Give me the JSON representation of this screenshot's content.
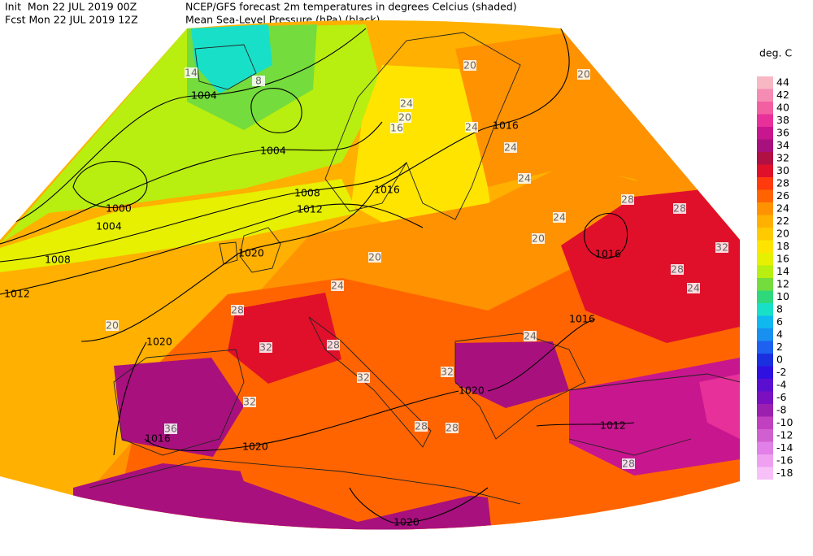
{
  "header": {
    "init": "Init  Mon 22 JUL 2019 00Z",
    "fcst": "Fcst Mon 22 JUL 2019 12Z",
    "title_line1": "NCEP/GFS forecast 2m temperatures in degrees Celcius (shaded)",
    "title_line2": "Mean Sea-Level Pressure (hPa) (black)."
  },
  "legend": {
    "unit": "deg. C",
    "levels": [
      44,
      42,
      40,
      38,
      36,
      34,
      32,
      30,
      28,
      26,
      24,
      22,
      20,
      18,
      16,
      14,
      12,
      10,
      8,
      6,
      4,
      2,
      0,
      -2,
      -4,
      -6,
      -8,
      -10,
      -12,
      -14,
      -16,
      -18
    ],
    "colors": [
      "#f7b8c4",
      "#f58cb4",
      "#f260a2",
      "#e8309a",
      "#c8168e",
      "#a8107e",
      "#b01044",
      "#e0102a",
      "#ff3a0c",
      "#ff6400",
      "#ff9200",
      "#ffb000",
      "#ffca00",
      "#ffe400",
      "#e6f000",
      "#b8ee10",
      "#74dc3c",
      "#30d87c",
      "#18e0c8",
      "#10b8f0",
      "#1890f0",
      "#1e60f0",
      "#1a30e0",
      "#3010e0",
      "#5a0ed0",
      "#7a10c0",
      "#9c20b0",
      "#c040c0",
      "#d060d0",
      "#e080e8",
      "#f0a0f0",
      "#f8c0f8"
    ]
  },
  "isobar_labels": [
    1004,
    1004,
    1000,
    1004,
    1008,
    1012,
    1008,
    1012,
    1016,
    1016,
    1020,
    1016,
    1016,
    1020,
    1016,
    1020,
    1020,
    1012,
    1020
  ],
  "temperature_labels": [
    14,
    8,
    20,
    24,
    16,
    20,
    24,
    24,
    24,
    20,
    24,
    28,
    28,
    24,
    20,
    24,
    28,
    28,
    32,
    32,
    36,
    32,
    32,
    28,
    28,
    28,
    24,
    32,
    28,
    20,
    20
  ]
}
